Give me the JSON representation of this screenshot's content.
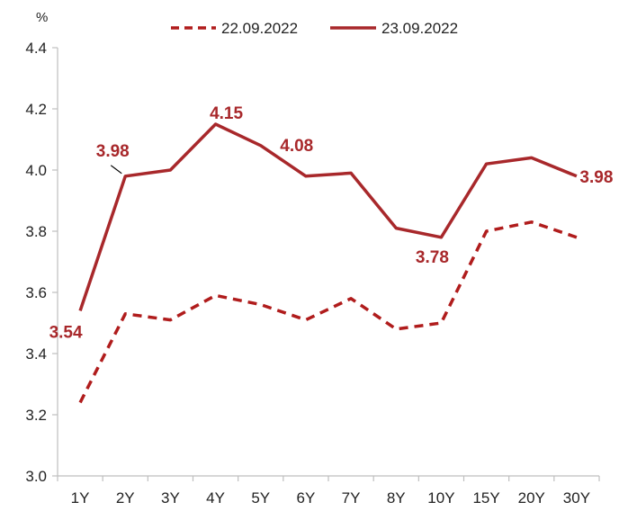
{
  "chart_data": {
    "type": "line",
    "unit_label": "%",
    "categories": [
      "1Y",
      "2Y",
      "3Y",
      "4Y",
      "5Y",
      "6Y",
      "7Y",
      "8Y",
      "10Y",
      "15Y",
      "20Y",
      "30Y"
    ],
    "ylim": [
      3.0,
      4.4
    ],
    "yticks": [
      "3.0",
      "3.2",
      "3.4",
      "3.6",
      "3.8",
      "4.0",
      "4.2",
      "4.4"
    ],
    "grid": false,
    "legend_position": "top-center",
    "series": [
      {
        "name": "22.09.2022",
        "style": "dashed",
        "color": "#b01c1c",
        "values": [
          3.24,
          3.53,
          3.51,
          3.59,
          3.56,
          3.51,
          3.58,
          3.48,
          3.5,
          3.8,
          3.83,
          3.78
        ]
      },
      {
        "name": "23.09.2022",
        "style": "solid",
        "color": "#a8282b",
        "values": [
          3.54,
          3.98,
          4.0,
          4.15,
          4.08,
          3.98,
          3.99,
          3.81,
          3.78,
          4.02,
          4.04,
          3.98
        ]
      }
    ],
    "annotations": [
      {
        "text": "3.54",
        "category": "1Y",
        "value": 3.54,
        "color": "#a8282b"
      },
      {
        "text": "3.98",
        "category": "2Y",
        "value": 3.98,
        "color": "#a8282b",
        "leader": true
      },
      {
        "text": "4.15",
        "category": "4Y",
        "value": 4.15,
        "color": "#a8282b"
      },
      {
        "text": "4.08",
        "category": "5Y",
        "value": 4.08,
        "color": "#a8282b"
      },
      {
        "text": "3.78",
        "category": "10Y",
        "value": 3.78,
        "color": "#a8282b"
      },
      {
        "text": "3.98",
        "category": "30Y",
        "value": 3.98,
        "color": "#a8282b"
      }
    ]
  }
}
